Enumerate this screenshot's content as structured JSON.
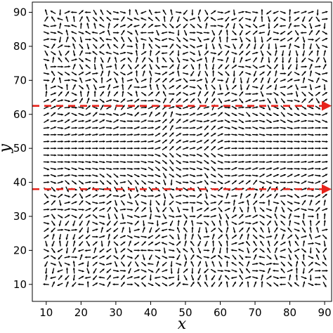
{
  "chart_data": {
    "type": "quiver",
    "xlabel": "x",
    "ylabel": "y",
    "xlim": [
      6,
      92
    ],
    "ylim": [
      5,
      93
    ],
    "xticks": [
      10,
      20,
      30,
      40,
      50,
      60,
      70,
      80,
      90
    ],
    "yticks": [
      10,
      20,
      30,
      40,
      50,
      60,
      70,
      80,
      90
    ],
    "grid": false,
    "field": {
      "x_range": [
        10,
        90
      ],
      "y_range": [
        10,
        90
      ],
      "step": 2,
      "color": "#000000",
      "description_values": "director field aligned horizontally along y=50, fanning out near the horizontal guide lines, disordered near the edges"
    },
    "guide_lines": [
      {
        "y": 62.5,
        "x_start": 6,
        "x_end": 92,
        "color": "#e8231b",
        "style": "dashed-arrow"
      },
      {
        "y": 38,
        "x_start": 6,
        "x_end": 92,
        "color": "#e8231b",
        "style": "dashed-arrow"
      }
    ]
  }
}
